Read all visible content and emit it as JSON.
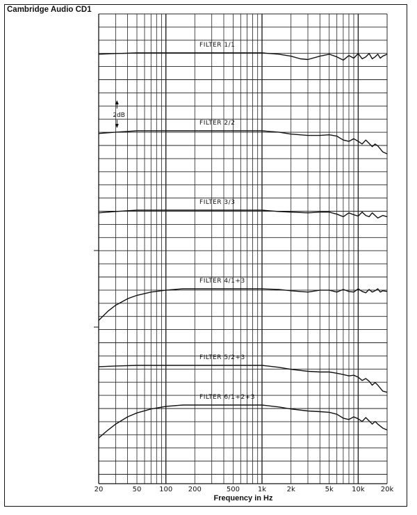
{
  "title": "Cambridge Audio CD1",
  "chart_data": {
    "type": "line",
    "title": "Cambridge Audio CD1",
    "xlabel": "Frequency in Hz",
    "ylabel": "",
    "xscale": "log",
    "xlim": [
      20,
      20000
    ],
    "xtick_values": [
      20,
      50,
      100,
      200,
      500,
      1000,
      2000,
      5000,
      10000,
      20000
    ],
    "xtick_labels": [
      "20",
      "50",
      "100",
      "200",
      "500",
      "1k",
      "2k",
      "5k",
      "10k",
      "20k"
    ],
    "grid": true,
    "scale_marker": "2dB",
    "series_unit": "dB (relative, each trace offset vertically)",
    "series": [
      {
        "name": "FILTER 1/1",
        "points": [
          [
            20,
            -0.2
          ],
          [
            30,
            -0.1
          ],
          [
            50,
            0
          ],
          [
            100,
            0
          ],
          [
            200,
            0
          ],
          [
            500,
            0
          ],
          [
            1000,
            0
          ],
          [
            1500,
            -0.2
          ],
          [
            2000,
            -0.5
          ],
          [
            2500,
            -0.9
          ],
          [
            3000,
            -1.0
          ],
          [
            4000,
            -0.5
          ],
          [
            5000,
            -0.2
          ],
          [
            6000,
            -0.6
          ],
          [
            7000,
            -1.1
          ],
          [
            8000,
            -0.4
          ],
          [
            9000,
            -0.8
          ],
          [
            10000,
            -0.1
          ],
          [
            11000,
            -0.9
          ],
          [
            12000,
            -0.6
          ],
          [
            13000,
            -0.1
          ],
          [
            14000,
            -0.9
          ],
          [
            15000,
            -0.6
          ],
          [
            16000,
            -0.2
          ],
          [
            17000,
            -0.8
          ],
          [
            18000,
            -0.5
          ],
          [
            20000,
            -0.2
          ]
        ]
      },
      {
        "name": "FILTER 2/2",
        "points": [
          [
            20,
            -0.4
          ],
          [
            30,
            -0.2
          ],
          [
            50,
            0
          ],
          [
            100,
            0
          ],
          [
            200,
            0
          ],
          [
            500,
            0
          ],
          [
            1000,
            0
          ],
          [
            1500,
            -0.2
          ],
          [
            2000,
            -0.5
          ],
          [
            3000,
            -0.7
          ],
          [
            4000,
            -0.7
          ],
          [
            5000,
            -0.6
          ],
          [
            6000,
            -0.8
          ],
          [
            7000,
            -1.4
          ],
          [
            8000,
            -1.6
          ],
          [
            9000,
            -1.2
          ],
          [
            10000,
            -1.6
          ],
          [
            11000,
            -2.0
          ],
          [
            12000,
            -1.4
          ],
          [
            13000,
            -1.9
          ],
          [
            14000,
            -2.4
          ],
          [
            15000,
            -2.0
          ],
          [
            16000,
            -2.3
          ],
          [
            18000,
            -3.2
          ],
          [
            20000,
            -3.5
          ]
        ]
      },
      {
        "name": "FILTER 3/3",
        "points": [
          [
            20,
            -0.4
          ],
          [
            30,
            -0.2
          ],
          [
            50,
            0
          ],
          [
            100,
            0
          ],
          [
            200,
            0
          ],
          [
            500,
            0
          ],
          [
            1000,
            0
          ],
          [
            1500,
            -0.2
          ],
          [
            2000,
            -0.3
          ],
          [
            3000,
            -0.4
          ],
          [
            4000,
            -0.3
          ],
          [
            5000,
            -0.3
          ],
          [
            6000,
            -0.6
          ],
          [
            7000,
            -1.0
          ],
          [
            8000,
            -0.4
          ],
          [
            9000,
            -0.7
          ],
          [
            10000,
            -0.9
          ],
          [
            11000,
            -0.3
          ],
          [
            12000,
            -0.8
          ],
          [
            13000,
            -1.0
          ],
          [
            14000,
            -0.4
          ],
          [
            15000,
            -0.8
          ],
          [
            16000,
            -1.2
          ],
          [
            18000,
            -0.8
          ],
          [
            20000,
            -1.0
          ]
        ]
      },
      {
        "name": "FILTER 4/1+3",
        "points": [
          [
            20,
            -4.8
          ],
          [
            25,
            -3.4
          ],
          [
            30,
            -2.5
          ],
          [
            40,
            -1.5
          ],
          [
            50,
            -1.0
          ],
          [
            70,
            -0.5
          ],
          [
            100,
            -0.2
          ],
          [
            150,
            0
          ],
          [
            200,
            0
          ],
          [
            500,
            0
          ],
          [
            1000,
            0
          ],
          [
            1500,
            -0.1
          ],
          [
            2000,
            -0.3
          ],
          [
            3000,
            -0.5
          ],
          [
            4000,
            -0.2
          ],
          [
            5000,
            -0.2
          ],
          [
            6000,
            -0.5
          ],
          [
            7000,
            -0.1
          ],
          [
            8000,
            -0.4
          ],
          [
            9000,
            -0.5
          ],
          [
            10000,
            0
          ],
          [
            11000,
            -0.4
          ],
          [
            12000,
            -0.6
          ],
          [
            13000,
            -0.1
          ],
          [
            14000,
            -0.5
          ],
          [
            15000,
            -0.3
          ],
          [
            16000,
            0
          ],
          [
            17000,
            -0.5
          ],
          [
            18000,
            -0.3
          ],
          [
            20000,
            -0.4
          ]
        ]
      },
      {
        "name": "FILTER 5/2+3",
        "points": [
          [
            20,
            -0.2
          ],
          [
            30,
            -0.1
          ],
          [
            50,
            0
          ],
          [
            100,
            0
          ],
          [
            200,
            0
          ],
          [
            500,
            0
          ],
          [
            1000,
            0
          ],
          [
            1500,
            -0.3
          ],
          [
            2000,
            -0.6
          ],
          [
            3000,
            -0.9
          ],
          [
            4000,
            -1.0
          ],
          [
            5000,
            -1.0
          ],
          [
            6000,
            -1.2
          ],
          [
            7000,
            -1.4
          ],
          [
            8000,
            -1.6
          ],
          [
            9000,
            -1.5
          ],
          [
            10000,
            -1.8
          ],
          [
            11000,
            -2.3
          ],
          [
            12000,
            -2.0
          ],
          [
            13000,
            -2.4
          ],
          [
            14000,
            -3.0
          ],
          [
            15000,
            -2.6
          ],
          [
            16000,
            -3.0
          ],
          [
            18000,
            -3.9
          ],
          [
            20000,
            -4.1
          ]
        ]
      },
      {
        "name": "FILTER 6/1+2+3",
        "points": [
          [
            20,
            -5.0
          ],
          [
            25,
            -3.8
          ],
          [
            30,
            -2.9
          ],
          [
            40,
            -1.8
          ],
          [
            50,
            -1.2
          ],
          [
            70,
            -0.6
          ],
          [
            100,
            -0.2
          ],
          [
            150,
            0
          ],
          [
            200,
            0
          ],
          [
            500,
            0
          ],
          [
            1000,
            0
          ],
          [
            1500,
            -0.3
          ],
          [
            2000,
            -0.6
          ],
          [
            3000,
            -0.9
          ],
          [
            4000,
            -1.0
          ],
          [
            5000,
            -1.1
          ],
          [
            6000,
            -1.4
          ],
          [
            7000,
            -2.0
          ],
          [
            8000,
            -2.2
          ],
          [
            9000,
            -1.8
          ],
          [
            10000,
            -2.1
          ],
          [
            11000,
            -2.5
          ],
          [
            12000,
            -1.9
          ],
          [
            13000,
            -2.4
          ],
          [
            14000,
            -2.9
          ],
          [
            15000,
            -2.5
          ],
          [
            16000,
            -2.9
          ],
          [
            18000,
            -3.5
          ],
          [
            20000,
            -3.8
          ]
        ]
      }
    ]
  }
}
